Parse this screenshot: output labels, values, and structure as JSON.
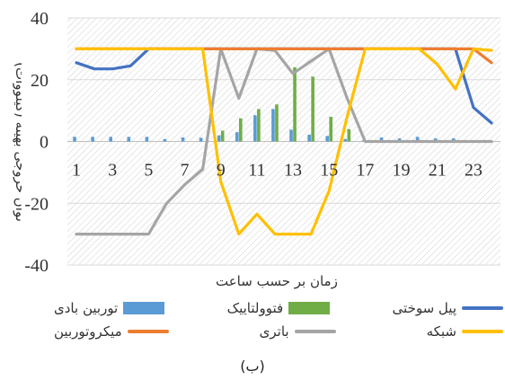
{
  "chart_data": {
    "type": "bar+line",
    "x_ticks": [
      "1",
      "3",
      "5",
      "7",
      "9",
      "11",
      "13",
      "15",
      "17",
      "19",
      "21",
      "23"
    ],
    "y_ticks": [
      "40",
      "20",
      "0",
      "-20",
      "-40"
    ],
    "xlabel": "زمان بر حسب ساعت",
    "ylabel": "توان خروجی بهینه (کیلووات)",
    "ylim": [
      -40,
      40
    ],
    "grid": "hatched",
    "hours": [
      1,
      2,
      3,
      4,
      5,
      6,
      7,
      8,
      9,
      10,
      11,
      12,
      13,
      14,
      15,
      16,
      17,
      18,
      19,
      20,
      21,
      22,
      23,
      24
    ],
    "bar_series": [
      {
        "name": "توربین بادی",
        "color": "#5B9BD5",
        "values": [
          1.5,
          1.5,
          1.5,
          1.5,
          1.5,
          0.8,
          1.3,
          1.2,
          2.0,
          3.0,
          8.5,
          10.5,
          3.8,
          2.2,
          1.8,
          0.8,
          0.3,
          1.3,
          1.0,
          1.5,
          1.0,
          1.0,
          0.2,
          0.1
        ]
      },
      {
        "name": "فتوولتاییک",
        "color": "#70AD47",
        "values": [
          0,
          0,
          0,
          0,
          0,
          0,
          0,
          0,
          3.5,
          7.5,
          10.5,
          12.0,
          24.0,
          21.0,
          8.0,
          4.0,
          0,
          0,
          0,
          0,
          0,
          0,
          0,
          0
        ]
      }
    ],
    "line_series": [
      {
        "name": "پیل سوختی",
        "color": "#4472C4",
        "values": [
          25.5,
          23.5,
          23.5,
          24.5,
          30,
          30,
          30,
          30,
          30,
          30,
          30,
          30,
          30,
          30,
          30,
          30,
          30,
          30,
          30,
          30,
          30,
          30,
          11,
          6
        ]
      },
      {
        "name": "میکروتوربین",
        "color": "#ED7D31",
        "values": [
          30,
          30,
          30,
          30,
          30,
          30,
          30,
          30,
          30,
          30,
          30,
          30,
          30,
          30,
          30,
          30,
          30,
          30,
          30,
          30,
          30,
          30,
          30,
          25.5
        ]
      },
      {
        "name": "باتری",
        "color": "#A5A5A5",
        "values": [
          -30,
          -30,
          -30,
          -30,
          -30,
          -20,
          -14,
          -9,
          30,
          14,
          30,
          29.5,
          22,
          26,
          30,
          14,
          0,
          0,
          0,
          0,
          0,
          0,
          0,
          0
        ]
      },
      {
        "name": "شبکه",
        "color": "#FFC000",
        "values": [
          30,
          30,
          30,
          30,
          30,
          30,
          30,
          30,
          -13,
          -30,
          -23.5,
          -30,
          -30,
          -30,
          -16,
          8,
          30,
          30,
          30,
          30,
          25,
          17,
          30,
          29.5
        ]
      }
    ]
  },
  "caption": "(ب)"
}
